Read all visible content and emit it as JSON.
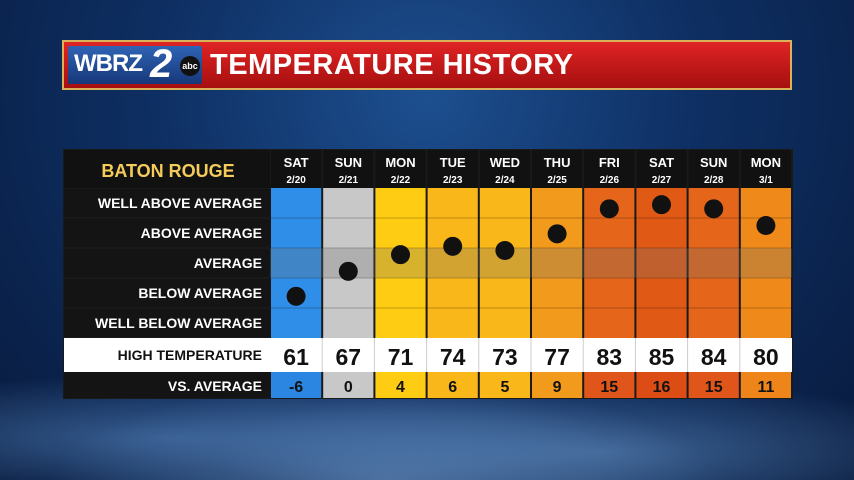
{
  "header": {
    "logo": {
      "text": "WBRZ",
      "number": "2",
      "network": "abc"
    },
    "title": "TEMPERATURE HISTORY"
  },
  "chart_data": {
    "type": "table",
    "location": "BATON ROUGE",
    "days": [
      "SAT",
      "SUN",
      "MON",
      "TUE",
      "WED",
      "THU",
      "FRI",
      "SAT",
      "SUN",
      "MON"
    ],
    "dates": [
      "2/20",
      "2/21",
      "2/22",
      "2/23",
      "2/24",
      "2/25",
      "2/26",
      "2/27",
      "2/28",
      "3/1"
    ],
    "rows": [
      "WELL ABOVE AVERAGE",
      "ABOVE AVERAGE",
      "AVERAGE",
      "BELOW AVERAGE",
      "WELL BELOW AVERAGE"
    ],
    "high_label": "HIGH TEMPERATURE",
    "avg_label": "VS. AVERAGE",
    "high_temperature": [
      61,
      67,
      71,
      74,
      73,
      77,
      83,
      85,
      84,
      80
    ],
    "vs_average": [
      "-6",
      "0",
      "4",
      "6",
      "5",
      "9",
      "15",
      "16",
      "15",
      "11"
    ],
    "anomaly": [
      -6,
      0,
      4,
      6,
      5,
      9,
      15,
      16,
      15,
      11
    ],
    "anomaly_range": [
      -16,
      20
    ],
    "column_colors": [
      "#2f8fe8",
      "#c8c8c8",
      "#ffcc14",
      "#f9b71a",
      "#f9b71a",
      "#f29a1c",
      "#e5661a",
      "#e05a15",
      "#e5661a",
      "#ef8a1a"
    ],
    "footer_colors": [
      "#2a86e0",
      "#c8c8c8",
      "#ffcc14",
      "#f9b71a",
      "#f9b71a",
      "#f29a1c",
      "#e0561a",
      "#dc4d15",
      "#e0561a",
      "#ee851a"
    ]
  }
}
